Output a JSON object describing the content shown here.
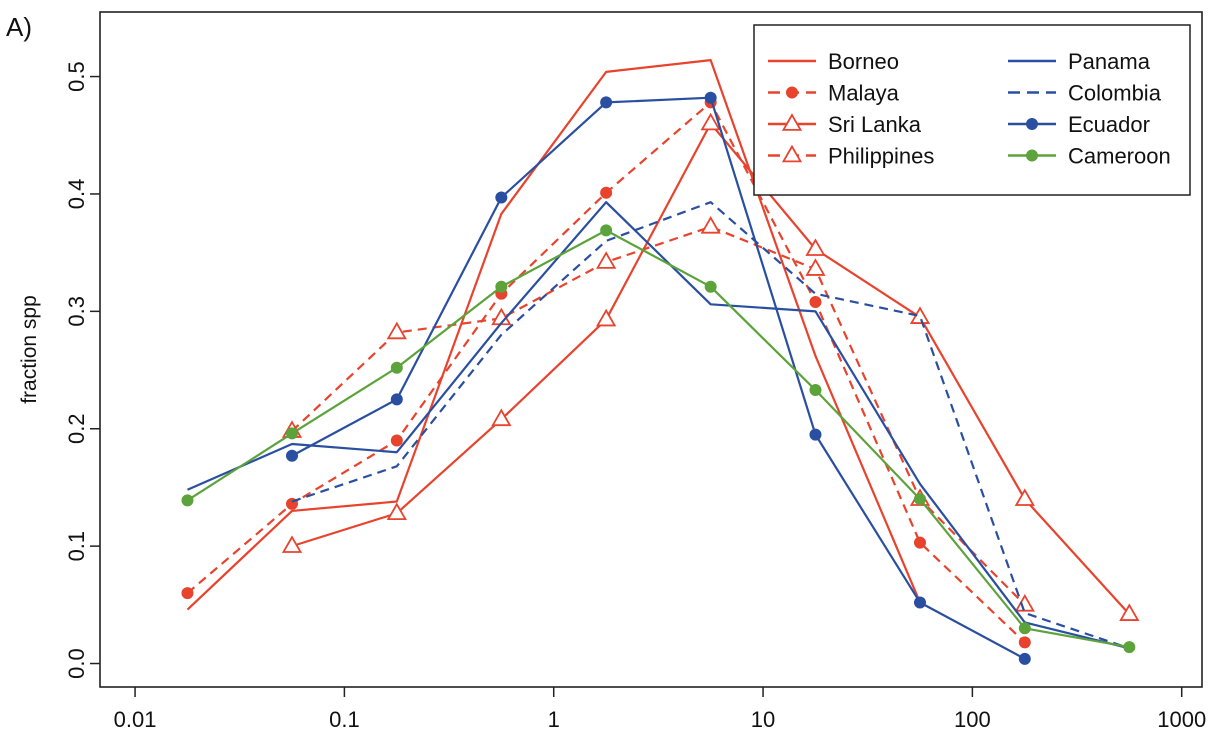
{
  "panel_label": "A)",
  "chart_data": {
    "type": "line",
    "title": "",
    "xlabel": "",
    "ylabel": "fraction spp",
    "xscale": "log",
    "xlim": [
      0.0068,
      1250
    ],
    "ylim": [
      -0.02,
      0.555
    ],
    "x_ticks": [
      0.01,
      0.1,
      1,
      10,
      100,
      1000
    ],
    "x_tick_labels": [
      "0.01",
      "0.1",
      "1",
      "10",
      "100",
      "1000"
    ],
    "y_ticks": [
      0.0,
      0.1,
      0.2,
      0.3,
      0.4,
      0.5
    ],
    "y_tick_labels": [
      "0.0",
      "0.1",
      "0.2",
      "0.3",
      "0.4",
      "0.5"
    ],
    "grid": false,
    "legend_position": "top-right",
    "series": [
      {
        "name": "Borneo",
        "color": "#e8432d",
        "dash": "solid",
        "marker": "none",
        "x": [
          0.0178,
          0.0562,
          0.178,
          0.562,
          1.78,
          5.62,
          17.8,
          56.2
        ],
        "y": [
          0.046,
          0.13,
          0.138,
          0.383,
          0.504,
          0.514,
          0.262,
          0.052
        ]
      },
      {
        "name": "Malaya",
        "color": "#e8432d",
        "dash": "dashed",
        "marker": "circle",
        "x": [
          0.0178,
          0.0562,
          0.178,
          0.562,
          1.78,
          5.62,
          17.8,
          56.2,
          178
        ],
        "y": [
          0.06,
          0.136,
          0.19,
          0.315,
          0.401,
          0.478,
          0.308,
          0.103,
          0.018
        ]
      },
      {
        "name": "Sri Lanka",
        "color": "#e8432d",
        "dash": "solid",
        "marker": "triangle",
        "x": [
          0.0562,
          0.178,
          0.562,
          1.78,
          5.62,
          17.8,
          56.2,
          178,
          562
        ],
        "y": [
          0.1,
          0.128,
          0.208,
          0.293,
          0.46,
          0.353,
          0.295,
          0.14,
          0.042
        ]
      },
      {
        "name": "Philippines",
        "color": "#e8432d",
        "dash": "dashed",
        "marker": "triangle",
        "x": [
          0.0562,
          0.178,
          0.562,
          1.78,
          5.62,
          17.8,
          56.2,
          178
        ],
        "y": [
          0.198,
          0.282,
          0.294,
          0.342,
          0.372,
          0.336,
          0.14,
          0.05
        ]
      },
      {
        "name": "Panama",
        "color": "#2a4fa0",
        "dash": "solid",
        "marker": "none",
        "x": [
          0.0178,
          0.0562,
          0.178,
          0.562,
          1.78,
          5.62,
          17.8,
          56.2,
          178,
          562
        ],
        "y": [
          0.148,
          0.187,
          0.18,
          0.29,
          0.393,
          0.306,
          0.3,
          0.153,
          0.035,
          0.013
        ]
      },
      {
        "name": "Colombia",
        "color": "#2a4fa0",
        "dash": "dashed",
        "marker": "none",
        "x": [
          0.0562,
          0.178,
          0.562,
          1.78,
          5.62,
          17.8,
          56.2,
          178,
          562
        ],
        "y": [
          0.138,
          0.168,
          0.28,
          0.36,
          0.393,
          0.315,
          0.296,
          0.043,
          0.013
        ]
      },
      {
        "name": "Ecuador",
        "color": "#2a4fa0",
        "dash": "solid",
        "marker": "circle",
        "x": [
          0.0562,
          0.178,
          0.562,
          1.78,
          5.62,
          17.8,
          56.2,
          178
        ],
        "y": [
          0.177,
          0.225,
          0.397,
          0.478,
          0.482,
          0.195,
          0.052,
          0.004
        ]
      },
      {
        "name": "Cameroon",
        "color": "#5ba33a",
        "dash": "solid",
        "marker": "circle",
        "x": [
          0.0178,
          0.0562,
          0.178,
          0.562,
          1.78,
          5.62,
          17.8,
          56.2,
          178,
          562
        ],
        "y": [
          0.139,
          0.196,
          0.252,
          0.321,
          0.369,
          0.321,
          0.233,
          0.14,
          0.03,
          0.014
        ]
      }
    ]
  }
}
